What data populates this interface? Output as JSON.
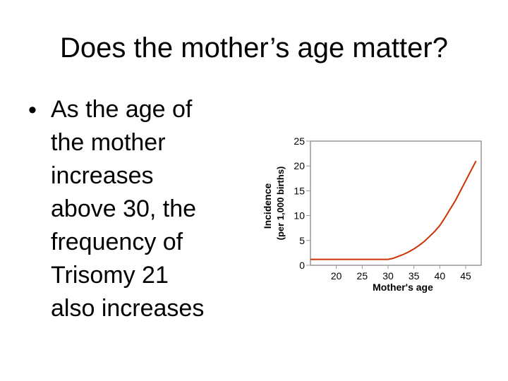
{
  "slide": {
    "title": "Does the mother’s age matter?",
    "bullet_marker": "•",
    "bullet_text": "As the age of\nthe mother\nincreases\nabove 30, the\nfrequency of\nTrisomy 21\nalso increases"
  },
  "chart_data": {
    "type": "line",
    "title": "",
    "xlabel": "Mother's age",
    "ylabel": "Incidence",
    "ylabel_line2": "(per 1,000 births)",
    "xlim": [
      15,
      48
    ],
    "ylim": [
      0,
      25
    ],
    "xticks": [
      20,
      25,
      30,
      35,
      40,
      45
    ],
    "yticks": [
      0,
      5,
      10,
      15,
      20,
      25
    ],
    "grid": false,
    "series": [
      {
        "color": "#cc3300",
        "x": [
          15,
          20,
          25,
          30,
          31,
          32,
          33,
          34,
          35,
          36,
          37,
          38,
          39,
          40,
          41,
          42,
          43,
          44,
          45,
          46,
          47
        ],
        "y": [
          1.2,
          1.2,
          1.2,
          1.2,
          1.4,
          1.8,
          2.2,
          2.7,
          3.3,
          4.0,
          4.8,
          5.8,
          6.8,
          8.0,
          9.6,
          11.3,
          13.0,
          15.0,
          17.0,
          19.0,
          21.0
        ]
      }
    ]
  }
}
